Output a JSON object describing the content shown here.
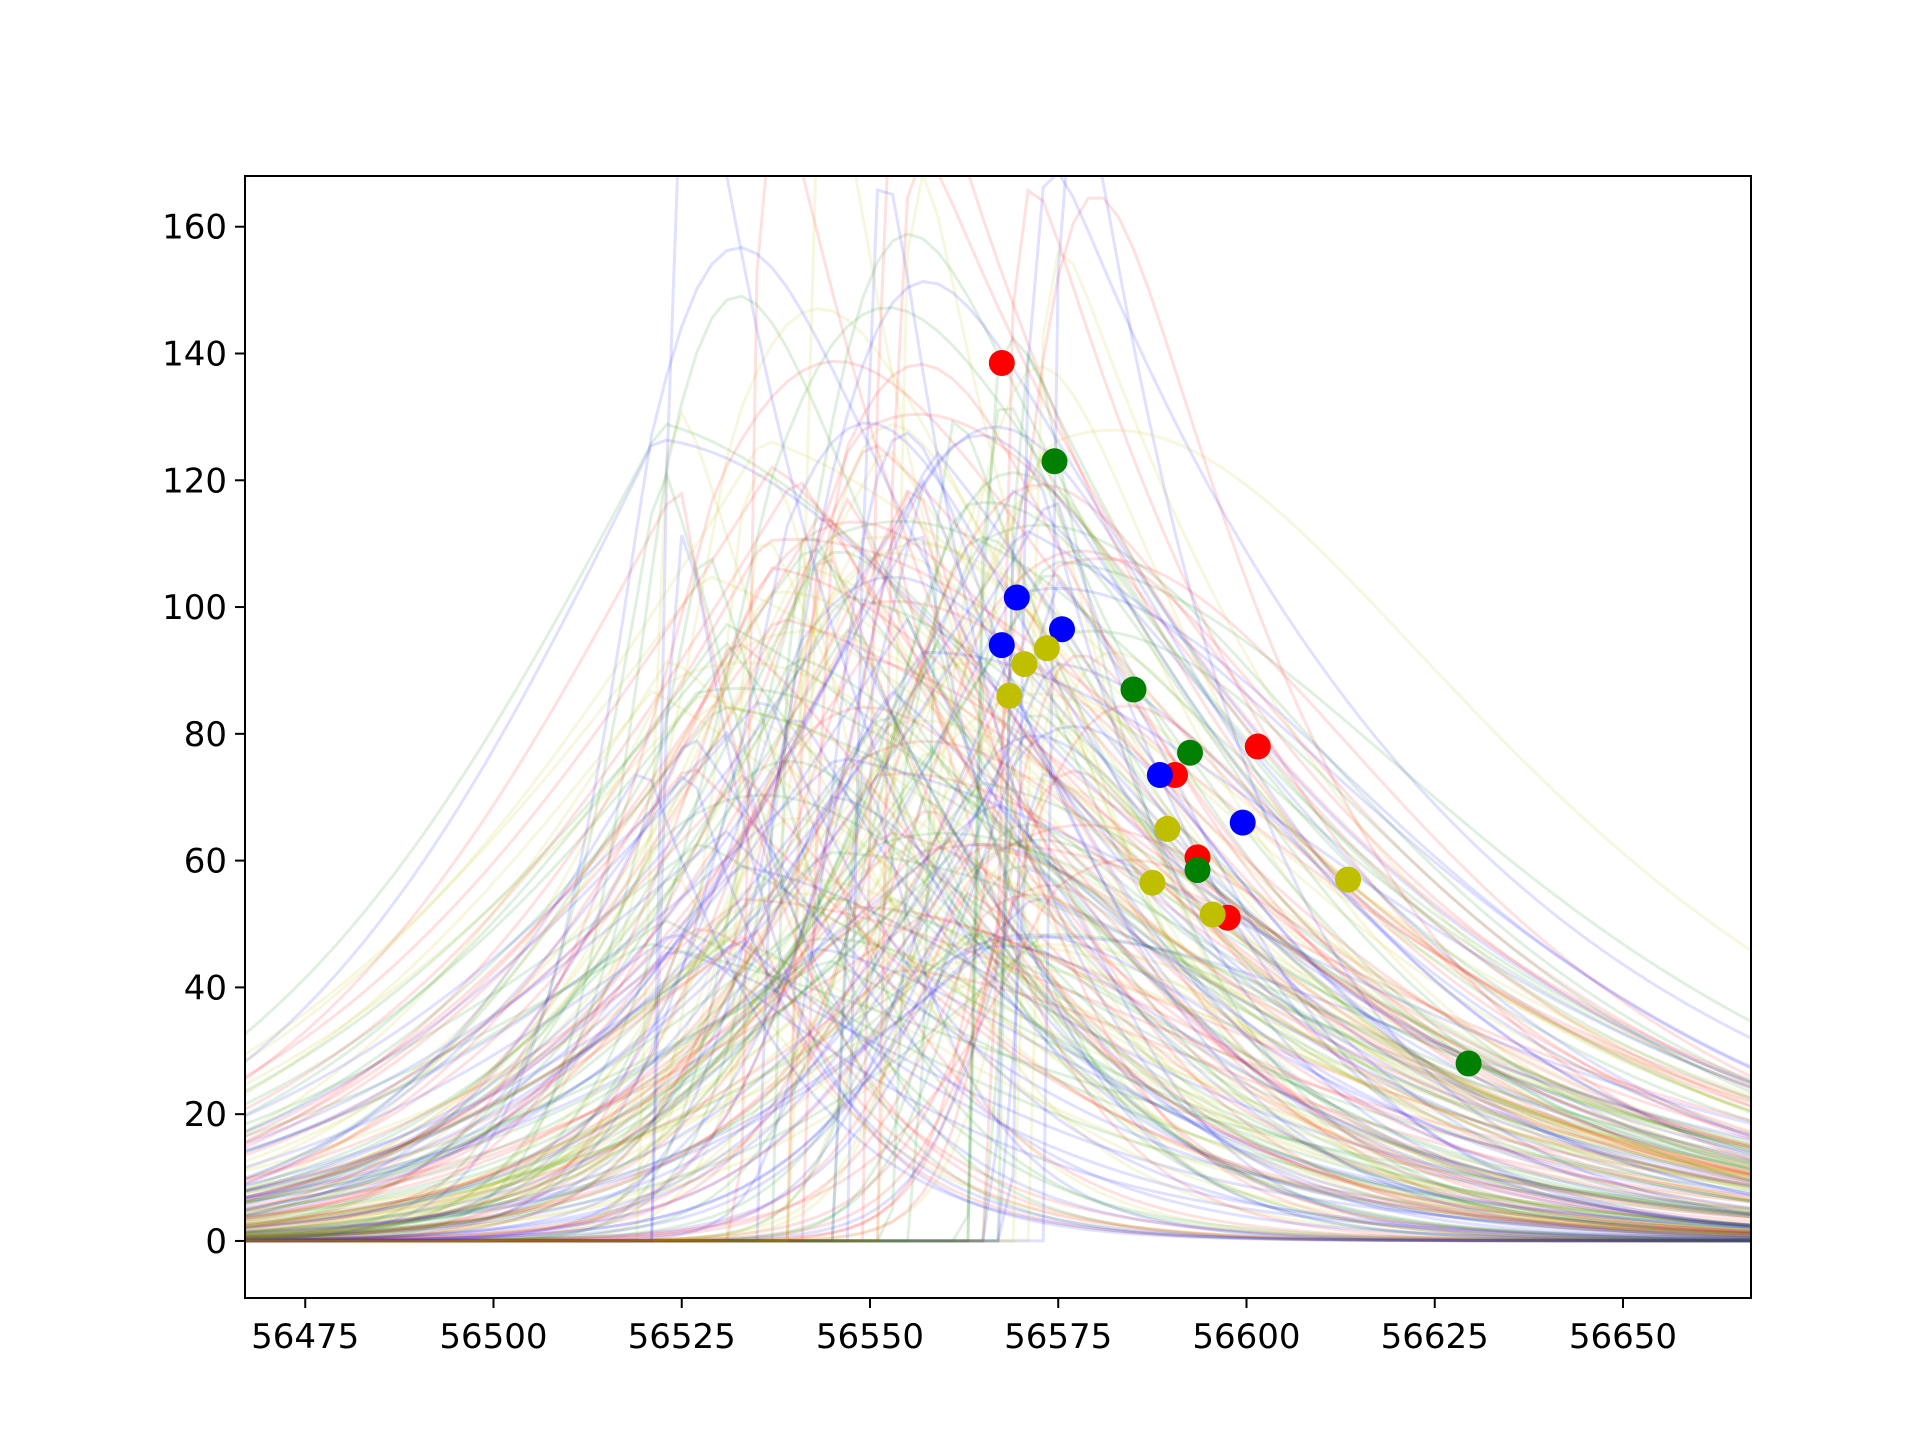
{
  "chart_data": {
    "type": "line",
    "title": "",
    "xlabel": "",
    "ylabel": "",
    "xlim": [
      56467,
      56667
    ],
    "ylim": [
      -9,
      168
    ],
    "grid": false,
    "legend": "none",
    "x_ticks": [
      56475,
      56500,
      56525,
      56550,
      56575,
      56600,
      56625,
      56650
    ],
    "y_ticks": [
      0,
      20,
      40,
      60,
      80,
      100,
      120,
      140,
      160
    ],
    "x_tick_labels": [
      "56475",
      "56500",
      "56525",
      "56550",
      "56575",
      "56600",
      "56625",
      "56650"
    ],
    "y_tick_labels": [
      "0",
      "20",
      "40",
      "60",
      "80",
      "100",
      "120",
      "140",
      "160"
    ],
    "series_colors": {
      "r": "#ff0000",
      "g": "#008000",
      "b": "#0000ff",
      "y": "#bfbf00"
    },
    "curve_opacity": 0.12,
    "model_curves": {
      "count_per_color": 55,
      "peak_time_range": [
        56520,
        56575
      ],
      "peak_flux_range": [
        85,
        260
      ],
      "rise_time_range": [
        4,
        35
      ],
      "decay_time_range": [
        12,
        60
      ]
    },
    "observations": [
      {
        "band": "r",
        "x": 56567.5,
        "y": 138.5
      },
      {
        "band": "r",
        "x": 56601.5,
        "y": 78
      },
      {
        "band": "r",
        "x": 56590.5,
        "y": 73.5
      },
      {
        "band": "r",
        "x": 56593.5,
        "y": 60.5
      },
      {
        "band": "r",
        "x": 56597.5,
        "y": 51
      },
      {
        "band": "g",
        "x": 56574.5,
        "y": 123
      },
      {
        "band": "g",
        "x": 56585,
        "y": 87
      },
      {
        "band": "g",
        "x": 56592.5,
        "y": 77
      },
      {
        "band": "g",
        "x": 56593.5,
        "y": 58.5
      },
      {
        "band": "g",
        "x": 56629.5,
        "y": 28
      },
      {
        "band": "b",
        "x": 56569.5,
        "y": 101.5
      },
      {
        "band": "b",
        "x": 56575.5,
        "y": 96.5
      },
      {
        "band": "b",
        "x": 56567.5,
        "y": 94
      },
      {
        "band": "b",
        "x": 56588.5,
        "y": 73.5
      },
      {
        "band": "b",
        "x": 56599.5,
        "y": 66
      },
      {
        "band": "y",
        "x": 56568.5,
        "y": 86
      },
      {
        "band": "y",
        "x": 56573.5,
        "y": 93.5
      },
      {
        "band": "y",
        "x": 56570.5,
        "y": 91
      },
      {
        "band": "y",
        "x": 56589.5,
        "y": 65
      },
      {
        "band": "y",
        "x": 56587.5,
        "y": 56.5
      },
      {
        "band": "y",
        "x": 56595.5,
        "y": 51.5
      },
      {
        "band": "y",
        "x": 56613.5,
        "y": 57
      }
    ]
  }
}
